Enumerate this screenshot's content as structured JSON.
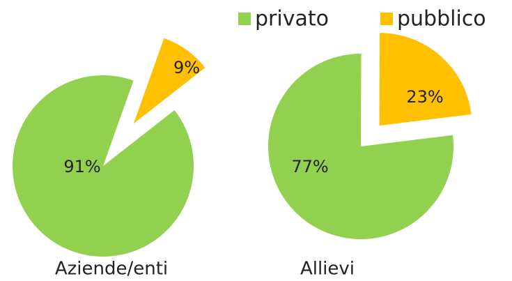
{
  "chart_data": [
    {
      "type": "pie",
      "title": "Aziende/enti",
      "categories": [
        "privato",
        "pubblico"
      ],
      "values": [
        91,
        9
      ],
      "value_labels": [
        "91%",
        "9%"
      ],
      "colors": [
        "#92d050",
        "#ffc000"
      ]
    },
    {
      "type": "pie",
      "title": "Allievi",
      "categories": [
        "privato",
        "pubblico"
      ],
      "values": [
        77,
        23
      ],
      "value_labels": [
        "77%",
        "23%"
      ],
      "colors": [
        "#92d050",
        "#ffc000"
      ]
    }
  ]
}
